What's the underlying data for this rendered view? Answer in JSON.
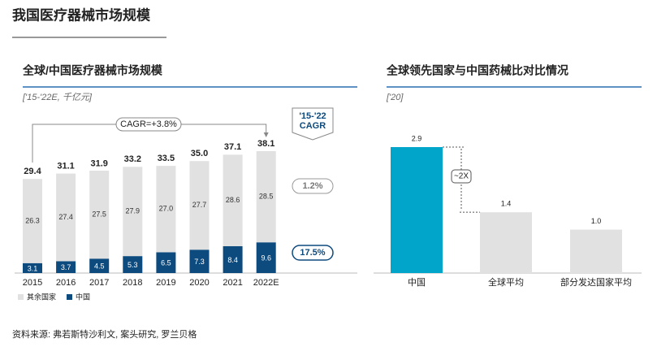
{
  "title": "我国医疗器械市场规模",
  "source": "资料来源: 弗若斯特沙利文, 案头研究, 罗兰贝格",
  "chart_data": [
    {
      "type": "stacked_bar",
      "title": "全球/中国医疗器械市场规模",
      "subtitle": "['15-'22E, 千亿元]",
      "categories": [
        "2015",
        "2016",
        "2017",
        "2018",
        "2019",
        "2020",
        "2021",
        "2022E"
      ],
      "series": [
        {
          "name": "中国",
          "color": "#0d4a7e",
          "values": [
            3.1,
            3.7,
            4.5,
            5.3,
            6.5,
            7.3,
            8.4,
            9.6
          ],
          "value_labels": [
            "3.1",
            "3.7",
            "4.5",
            "5.3",
            "6.5",
            "7.3",
            "8.4",
            "9.6"
          ]
        },
        {
          "name": "其余国家",
          "color": "#e1e1e1",
          "values": [
            26.3,
            27.4,
            27.5,
            27.9,
            27.0,
            27.7,
            28.6,
            28.5
          ],
          "value_labels": [
            "26.3",
            "27.4",
            "27.5",
            "27.9",
            "27.0",
            "27.7",
            "28.6",
            "28.5"
          ]
        }
      ],
      "totals": [
        29.4,
        31.1,
        31.9,
        33.2,
        33.5,
        35.0,
        37.1,
        38.1
      ],
      "total_labels": [
        "29.4",
        "31.1",
        "31.9",
        "33.2",
        "33.5",
        "35.0",
        "37.1",
        "38.1"
      ],
      "cagr_total": "CAGR=+3.8%",
      "cagr_header": [
        "'15-'22",
        "CAGR"
      ],
      "cagr_series": [
        "17.5%",
        "1.2%"
      ]
    },
    {
      "type": "bar",
      "title": "全球领先国家与中国药械比对比情况",
      "subtitle": "['20]",
      "categories": [
        "中国",
        "全球平均",
        "部分发达国家平均"
      ],
      "values": [
        2.9,
        1.4,
        1.0
      ],
      "value_labels": [
        "2.9",
        "1.4",
        "1.0"
      ],
      "colors": [
        "#00a5c9",
        "#e1e1e1",
        "#e1e1e1"
      ],
      "annotation": "~2X"
    }
  ]
}
